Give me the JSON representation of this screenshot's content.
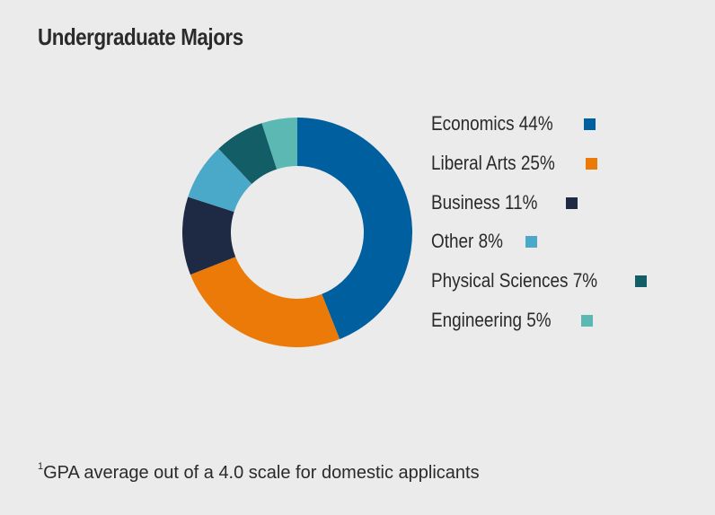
{
  "chart_data": {
    "type": "pie",
    "title": "Undergraduate Majors",
    "donut": true,
    "categories": [
      "Economics",
      "Liberal Arts",
      "Business",
      "Other",
      "Physical Sciences",
      "Engineering"
    ],
    "values": [
      44,
      25,
      11,
      8,
      7,
      5
    ],
    "value_unit": "%",
    "labels": [
      "Economics 44%",
      "Liberal Arts 25%",
      "Business 11%",
      "Other 8%",
      "Physical Sciences 7%",
      "Engineering 5%"
    ],
    "colors": [
      "#005f9e",
      "#ec7a08",
      "#1e2a44",
      "#4aa8c8",
      "#135e66",
      "#5cb8b2"
    ],
    "legend_position": "right"
  },
  "footnote": {
    "marker": "1",
    "text": "GPA average out of a 4.0 scale for domestic applicants"
  }
}
